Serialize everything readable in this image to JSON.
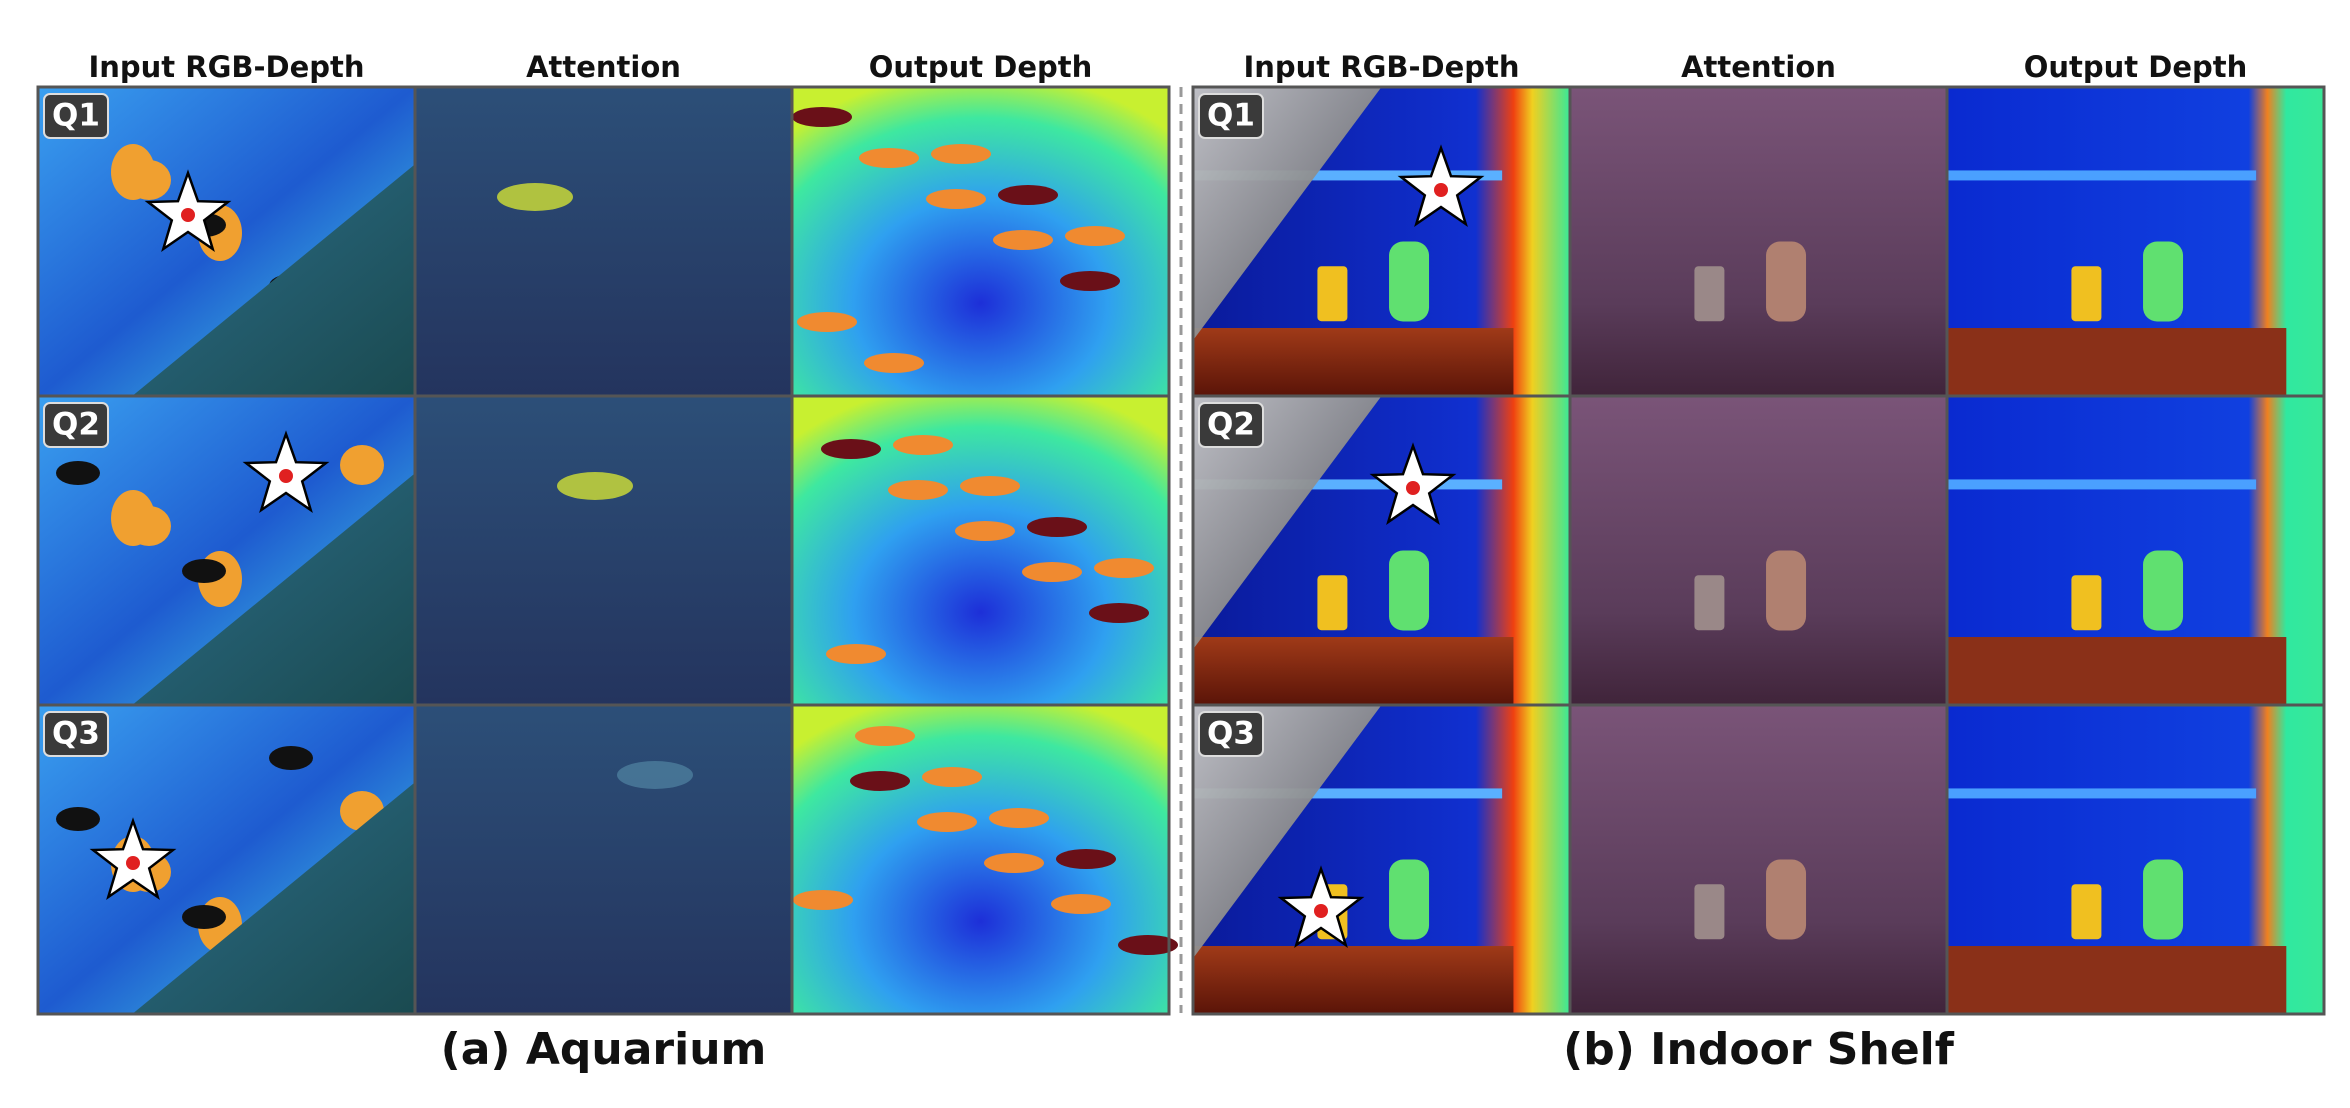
{
  "panels": [
    {
      "caption": "(a) Aquarium",
      "columns": [
        "Input RGB-Depth",
        "Attention",
        "Output Depth"
      ],
      "rows": [
        "Q1",
        "Q2",
        "Q3"
      ]
    },
    {
      "caption": "(b) Indoor Shelf",
      "columns": [
        "Input RGB-Depth",
        "Attention",
        "Output Depth"
      ],
      "rows": [
        "Q1",
        "Q2",
        "Q3"
      ]
    }
  ]
}
